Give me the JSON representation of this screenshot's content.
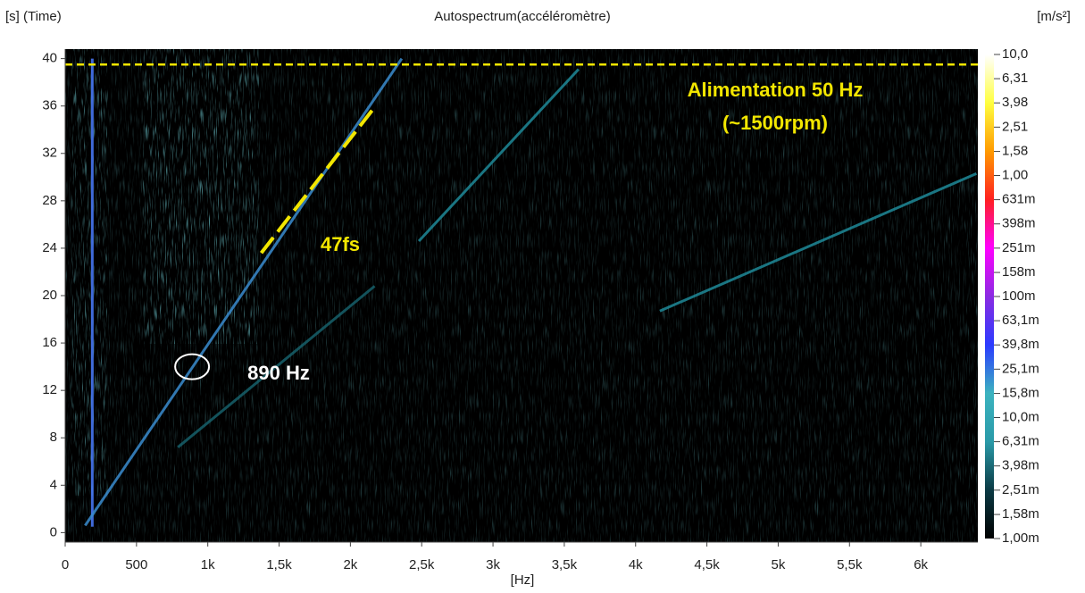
{
  "chart_data": {
    "type": "spectrogram",
    "title": "Autospectrum(accéléromètre)",
    "y_label": "[s] (Time)",
    "x_label": "[Hz]",
    "colorbar_label": "[m/s²]",
    "xlim": [
      0,
      6400
    ],
    "xticks": [
      0,
      500,
      {
        "value": 1000,
        "label": "1k"
      },
      {
        "value": 1500,
        "label": "1,5k"
      },
      {
        "value": 2000,
        "label": "2k"
      },
      {
        "value": 2500,
        "label": "2,5k"
      },
      {
        "value": 3000,
        "label": "3k"
      },
      {
        "value": 3500,
        "label": "3,5k"
      },
      {
        "value": 4000,
        "label": "4k"
      },
      {
        "value": 4500,
        "label": "4,5k"
      },
      {
        "value": 5000,
        "label": "5k"
      },
      {
        "value": 5500,
        "label": "5,5k"
      },
      {
        "value": 6000,
        "label": "6k"
      }
    ],
    "ylim": [
      -0.8,
      40.8
    ],
    "yticks": [
      0,
      4,
      8,
      12,
      16,
      20,
      24,
      28,
      32,
      36,
      40
    ],
    "colorbar": {
      "log": true,
      "lim": [
        0.001,
        10
      ],
      "colors": [
        "#000000",
        "#0b3a44",
        "#2a9aa8",
        "#3cb3bf",
        "#2b3bff",
        "#8a2be2",
        "#ff00ff",
        "#ff2020",
        "#ff9a00",
        "#ffff40",
        "#ffffff"
      ],
      "ticks": [
        {
          "value": 10,
          "label": "10,0"
        },
        {
          "value": 6.31,
          "label": "6,31"
        },
        {
          "value": 3.98,
          "label": "3,98"
        },
        {
          "value": 2.51,
          "label": "2,51"
        },
        {
          "value": 1.58,
          "label": "1,58"
        },
        {
          "value": 1,
          "label": "1,00"
        },
        {
          "value": 0.631,
          "label": "631m"
        },
        {
          "value": 0.398,
          "label": "398m"
        },
        {
          "value": 0.251,
          "label": "251m"
        },
        {
          "value": 0.158,
          "label": "158m"
        },
        {
          "value": 0.1,
          "label": "100m"
        },
        {
          "value": 0.0631,
          "label": "63,1m"
        },
        {
          "value": 0.0398,
          "label": "39,8m"
        },
        {
          "value": 0.0251,
          "label": "25,1m"
        },
        {
          "value": 0.0158,
          "label": "15,8m"
        },
        {
          "value": 0.01,
          "label": "10,0m"
        },
        {
          "value": 0.00631,
          "label": "6,31m"
        },
        {
          "value": 0.00398,
          "label": "3,98m"
        },
        {
          "value": 0.00251,
          "label": "2,51m"
        },
        {
          "value": 0.00158,
          "label": "1,58m"
        },
        {
          "value": 0.001,
          "label": "1,00m"
        }
      ]
    },
    "traces": [
      {
        "color": "#4a7cff",
        "x": [
          190,
          190
        ],
        "y": [
          0.5,
          40
        ]
      },
      {
        "color": "#3a8ccf",
        "x": [
          140,
          2360
        ],
        "y": [
          0.6,
          40
        ]
      },
      {
        "color": "#1f8a99",
        "x": [
          2480,
          3600
        ],
        "y": [
          24.6,
          39.1
        ]
      },
      {
        "color": "#1f8a99",
        "x": [
          4170,
          6390
        ],
        "y": [
          18.7,
          30.3
        ]
      },
      {
        "color": "#16606b",
        "x": [
          790,
          2170
        ],
        "y": [
          7.2,
          20.8
        ]
      }
    ],
    "reference_line": {
      "y": 39.5,
      "color": "#f2e600"
    },
    "order_line": {
      "x": [
        1375,
        2170
      ],
      "y": [
        23.6,
        35.9
      ],
      "color": "#f2e600"
    },
    "marker": {
      "x": 890,
      "y": 14,
      "color": "#ffffff"
    },
    "annotations": [
      "Alimentation 50 Hz",
      "(~1500rpm)",
      "47fs",
      "890 Hz"
    ]
  }
}
